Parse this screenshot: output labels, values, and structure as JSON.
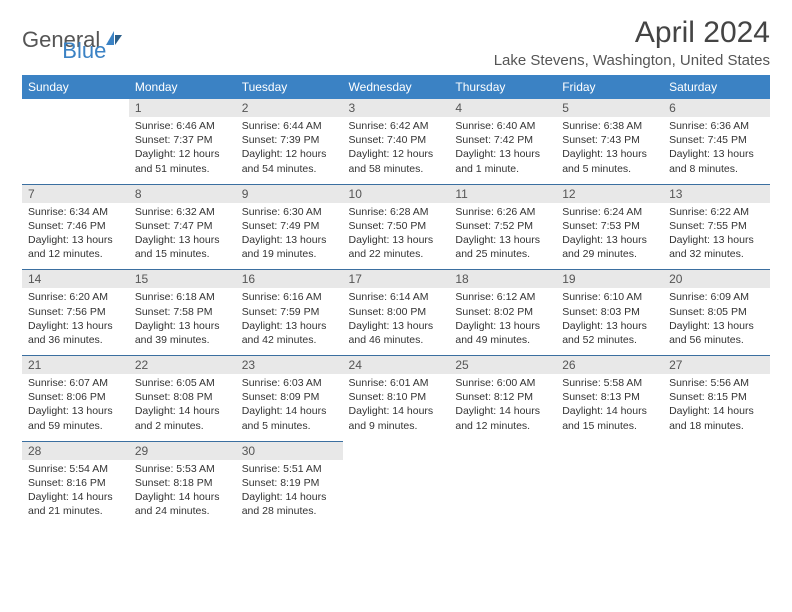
{
  "logo": {
    "text1": "General",
    "text2": "Blue"
  },
  "title": "April 2024",
  "location": "Lake Stevens, Washington, United States",
  "colors": {
    "header_bg": "#3b82c4",
    "header_text": "#ffffff",
    "daynum_bg": "#e8e8e8",
    "border": "#3b6fa0",
    "logo_blue": "#3b82c4",
    "logo_gray": "#555555"
  },
  "columns": [
    "Sunday",
    "Monday",
    "Tuesday",
    "Wednesday",
    "Thursday",
    "Friday",
    "Saturday"
  ],
  "weeks": [
    [
      {
        "n": "",
        "sr": "",
        "ss": "",
        "dl": ""
      },
      {
        "n": "1",
        "sr": "Sunrise: 6:46 AM",
        "ss": "Sunset: 7:37 PM",
        "dl": "Daylight: 12 hours and 51 minutes."
      },
      {
        "n": "2",
        "sr": "Sunrise: 6:44 AM",
        "ss": "Sunset: 7:39 PM",
        "dl": "Daylight: 12 hours and 54 minutes."
      },
      {
        "n": "3",
        "sr": "Sunrise: 6:42 AM",
        "ss": "Sunset: 7:40 PM",
        "dl": "Daylight: 12 hours and 58 minutes."
      },
      {
        "n": "4",
        "sr": "Sunrise: 6:40 AM",
        "ss": "Sunset: 7:42 PM",
        "dl": "Daylight: 13 hours and 1 minute."
      },
      {
        "n": "5",
        "sr": "Sunrise: 6:38 AM",
        "ss": "Sunset: 7:43 PM",
        "dl": "Daylight: 13 hours and 5 minutes."
      },
      {
        "n": "6",
        "sr": "Sunrise: 6:36 AM",
        "ss": "Sunset: 7:45 PM",
        "dl": "Daylight: 13 hours and 8 minutes."
      }
    ],
    [
      {
        "n": "7",
        "sr": "Sunrise: 6:34 AM",
        "ss": "Sunset: 7:46 PM",
        "dl": "Daylight: 13 hours and 12 minutes."
      },
      {
        "n": "8",
        "sr": "Sunrise: 6:32 AM",
        "ss": "Sunset: 7:47 PM",
        "dl": "Daylight: 13 hours and 15 minutes."
      },
      {
        "n": "9",
        "sr": "Sunrise: 6:30 AM",
        "ss": "Sunset: 7:49 PM",
        "dl": "Daylight: 13 hours and 19 minutes."
      },
      {
        "n": "10",
        "sr": "Sunrise: 6:28 AM",
        "ss": "Sunset: 7:50 PM",
        "dl": "Daylight: 13 hours and 22 minutes."
      },
      {
        "n": "11",
        "sr": "Sunrise: 6:26 AM",
        "ss": "Sunset: 7:52 PM",
        "dl": "Daylight: 13 hours and 25 minutes."
      },
      {
        "n": "12",
        "sr": "Sunrise: 6:24 AM",
        "ss": "Sunset: 7:53 PM",
        "dl": "Daylight: 13 hours and 29 minutes."
      },
      {
        "n": "13",
        "sr": "Sunrise: 6:22 AM",
        "ss": "Sunset: 7:55 PM",
        "dl": "Daylight: 13 hours and 32 minutes."
      }
    ],
    [
      {
        "n": "14",
        "sr": "Sunrise: 6:20 AM",
        "ss": "Sunset: 7:56 PM",
        "dl": "Daylight: 13 hours and 36 minutes."
      },
      {
        "n": "15",
        "sr": "Sunrise: 6:18 AM",
        "ss": "Sunset: 7:58 PM",
        "dl": "Daylight: 13 hours and 39 minutes."
      },
      {
        "n": "16",
        "sr": "Sunrise: 6:16 AM",
        "ss": "Sunset: 7:59 PM",
        "dl": "Daylight: 13 hours and 42 minutes."
      },
      {
        "n": "17",
        "sr": "Sunrise: 6:14 AM",
        "ss": "Sunset: 8:00 PM",
        "dl": "Daylight: 13 hours and 46 minutes."
      },
      {
        "n": "18",
        "sr": "Sunrise: 6:12 AM",
        "ss": "Sunset: 8:02 PM",
        "dl": "Daylight: 13 hours and 49 minutes."
      },
      {
        "n": "19",
        "sr": "Sunrise: 6:10 AM",
        "ss": "Sunset: 8:03 PM",
        "dl": "Daylight: 13 hours and 52 minutes."
      },
      {
        "n": "20",
        "sr": "Sunrise: 6:09 AM",
        "ss": "Sunset: 8:05 PM",
        "dl": "Daylight: 13 hours and 56 minutes."
      }
    ],
    [
      {
        "n": "21",
        "sr": "Sunrise: 6:07 AM",
        "ss": "Sunset: 8:06 PM",
        "dl": "Daylight: 13 hours and 59 minutes."
      },
      {
        "n": "22",
        "sr": "Sunrise: 6:05 AM",
        "ss": "Sunset: 8:08 PM",
        "dl": "Daylight: 14 hours and 2 minutes."
      },
      {
        "n": "23",
        "sr": "Sunrise: 6:03 AM",
        "ss": "Sunset: 8:09 PM",
        "dl": "Daylight: 14 hours and 5 minutes."
      },
      {
        "n": "24",
        "sr": "Sunrise: 6:01 AM",
        "ss": "Sunset: 8:10 PM",
        "dl": "Daylight: 14 hours and 9 minutes."
      },
      {
        "n": "25",
        "sr": "Sunrise: 6:00 AM",
        "ss": "Sunset: 8:12 PM",
        "dl": "Daylight: 14 hours and 12 minutes."
      },
      {
        "n": "26",
        "sr": "Sunrise: 5:58 AM",
        "ss": "Sunset: 8:13 PM",
        "dl": "Daylight: 14 hours and 15 minutes."
      },
      {
        "n": "27",
        "sr": "Sunrise: 5:56 AM",
        "ss": "Sunset: 8:15 PM",
        "dl": "Daylight: 14 hours and 18 minutes."
      }
    ],
    [
      {
        "n": "28",
        "sr": "Sunrise: 5:54 AM",
        "ss": "Sunset: 8:16 PM",
        "dl": "Daylight: 14 hours and 21 minutes."
      },
      {
        "n": "29",
        "sr": "Sunrise: 5:53 AM",
        "ss": "Sunset: 8:18 PM",
        "dl": "Daylight: 14 hours and 24 minutes."
      },
      {
        "n": "30",
        "sr": "Sunrise: 5:51 AM",
        "ss": "Sunset: 8:19 PM",
        "dl": "Daylight: 14 hours and 28 minutes."
      },
      {
        "n": "",
        "sr": "",
        "ss": "",
        "dl": ""
      },
      {
        "n": "",
        "sr": "",
        "ss": "",
        "dl": ""
      },
      {
        "n": "",
        "sr": "",
        "ss": "",
        "dl": ""
      },
      {
        "n": "",
        "sr": "",
        "ss": "",
        "dl": ""
      }
    ]
  ]
}
